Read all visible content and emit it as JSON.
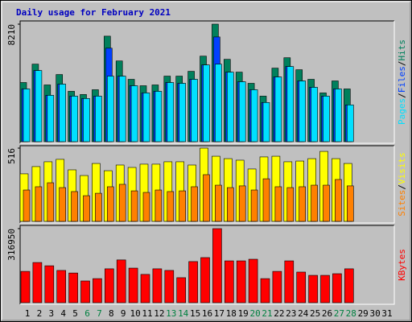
{
  "chart_data": {
    "type": "bar",
    "title": "Daily usage for February 2021",
    "separator": "/",
    "categories": [
      "1",
      "2",
      "3",
      "4",
      "5",
      "6",
      "7",
      "8",
      "9",
      "10",
      "11",
      "12",
      "13",
      "14",
      "15",
      "16",
      "17",
      "18",
      "19",
      "20",
      "21",
      "22",
      "23",
      "24",
      "25",
      "26",
      "27",
      "28",
      "29",
      "30",
      "31"
    ],
    "category_colors": [
      "#000000",
      "#000000",
      "#000000",
      "#000000",
      "#000000",
      "#008040",
      "#008040",
      "#000000",
      "#000000",
      "#000000",
      "#000000",
      "#000000",
      "#008040",
      "#008040",
      "#000000",
      "#000000",
      "#000000",
      "#000000",
      "#000000",
      "#008040",
      "#008040",
      "#000000",
      "#000000",
      "#000000",
      "#000000",
      "#000000",
      "#008040",
      "#008040",
      "#000000",
      "#000000",
      "#000000"
    ],
    "panels": [
      {
        "ylim": [
          0,
          8210
        ],
        "yticks": [
          8210
        ],
        "series": [
          {
            "name": "Hits",
            "color": "#00805c",
            "values": [
              4133,
              5418,
              3965,
              4691,
              3519,
              3295,
              3630,
              7372,
              5641,
              4356,
              3909,
              3965,
              4580,
              4580,
              4915,
              5976,
              8210,
              5753,
              4859,
              4077,
              3183,
              5138,
              5864,
              5027,
              4356,
              3407,
              4245,
              3686,
              null,
              null,
              null
            ]
          },
          {
            "name": "Files",
            "color": "#0040ff",
            "values": [
              3686,
              4971,
              3239,
              4021,
              3183,
              3016,
              3183,
              6534,
              4580,
              3909,
              3407,
              3519,
              4133,
              4077,
              4356,
              5362,
              7316,
              4859,
              4189,
              3630,
              2737,
              4524,
              5250,
              4245,
              3798,
              3183,
              3686,
              2569,
              null,
              null,
              null
            ]
          },
          {
            "name": "Pages",
            "color": "#00e0ff",
            "values": [
              3686,
              4971,
              3239,
              4021,
              3183,
              3016,
              3183,
              4580,
              4580,
              3909,
              3407,
              3519,
              4133,
              4077,
              4356,
              5362,
              5418,
              4859,
              4189,
              3630,
              2737,
              4524,
              5250,
              4245,
              3798,
              3183,
              3686,
              2569,
              null,
              null,
              null
            ]
          }
        ]
      },
      {
        "ylim": [
          0,
          516
        ],
        "yticks": [
          516
        ],
        "series": [
          {
            "name": "Visits",
            "color": "#ffff00",
            "values": [
              335,
              386,
              420,
              437,
              363,
              323,
              408,
              357,
              397,
              380,
              403,
              403,
              420,
              420,
              397,
              516,
              459,
              442,
              431,
              369,
              454,
              459,
              420,
              425,
              442,
              493,
              442,
              408,
              null,
              null,
              null
            ]
          },
          {
            "name": "Sites",
            "color": "#ff8000",
            "values": [
              221,
              244,
              272,
              238,
              210,
              181,
              198,
              244,
              261,
              215,
              204,
              221,
              210,
              215,
              244,
              329,
              255,
              238,
              250,
              221,
              300,
              244,
              238,
              244,
              255,
              255,
              295,
              250,
              null,
              null,
              null
            ]
          }
        ]
      },
      {
        "ylim": [
          0,
          316950
        ],
        "yticks": [
          316950
        ],
        "series": [
          {
            "name": "KBytes",
            "color": "#ff0000",
            "values": [
              134000,
              172000,
              158000,
              138000,
              127000,
              93000,
              103000,
              145000,
              183000,
              148000,
              121000,
              145000,
              138000,
              107000,
              176000,
              193000,
              316950,
              179000,
              179000,
              186000,
              103000,
              134000,
              179000,
              131000,
              117000,
              117000,
              124000,
              145000,
              null,
              null,
              null
            ]
          }
        ]
      }
    ]
  }
}
